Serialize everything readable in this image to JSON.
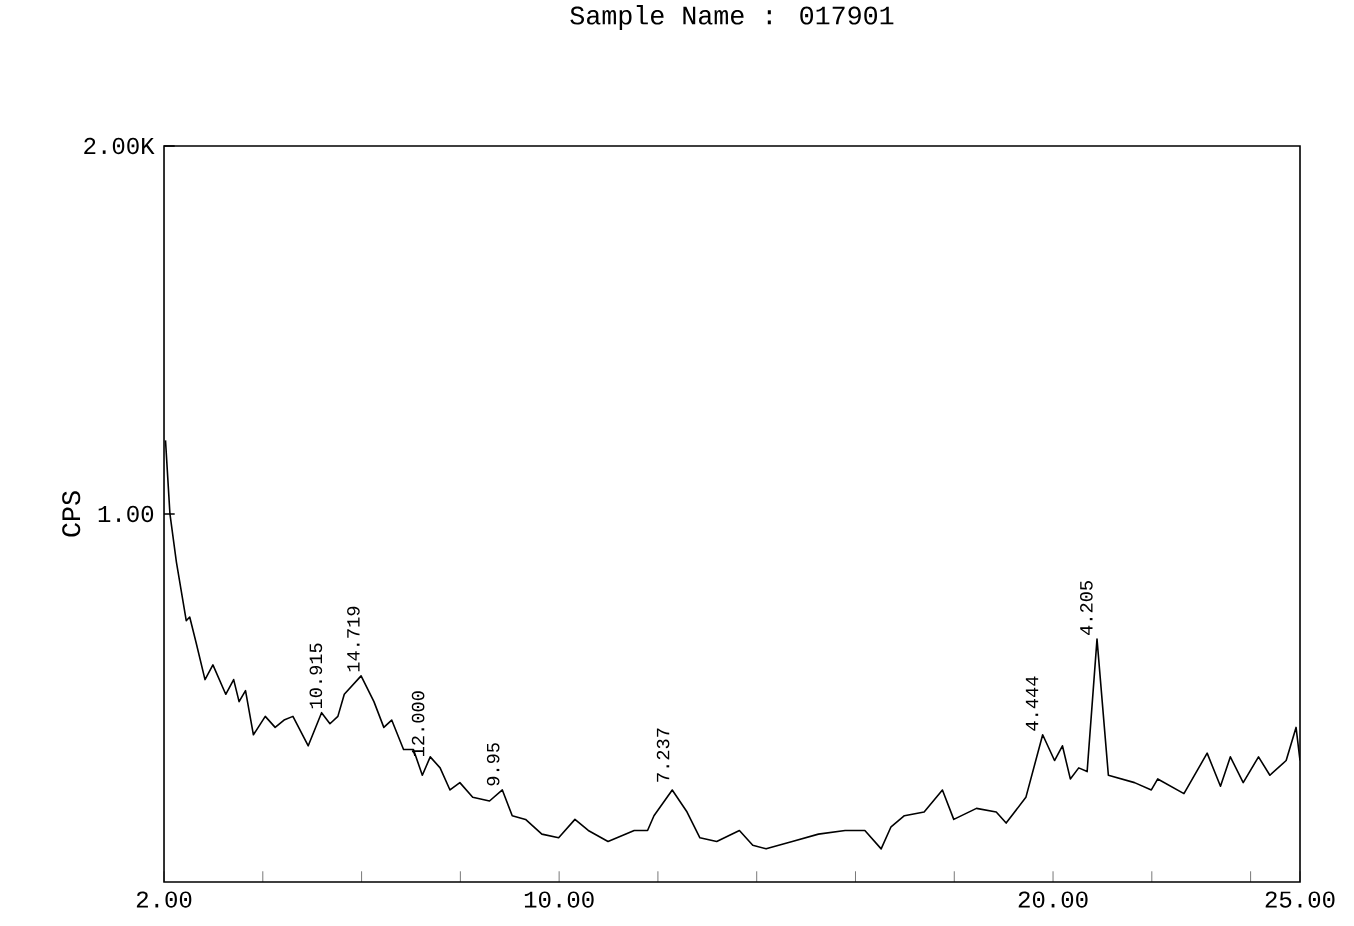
{
  "chart_data": {
    "type": "line",
    "title": "Sample Name : 017901",
    "ylabel": "CPS",
    "xlim": [
      2,
      25
    ],
    "ylim": [
      0,
      2
    ],
    "xticks": [
      {
        "value": 2,
        "label": "2.00"
      },
      {
        "value": 4,
        "label": null
      },
      {
        "value": 6,
        "label": null
      },
      {
        "value": 8,
        "label": null
      },
      {
        "value": 10,
        "label": "10.00"
      },
      {
        "value": 12,
        "label": null
      },
      {
        "value": 14,
        "label": null
      },
      {
        "value": 16,
        "label": null
      },
      {
        "value": 18,
        "label": null
      },
      {
        "value": 20,
        "label": "20.00"
      },
      {
        "value": 22,
        "label": null
      },
      {
        "value": 24,
        "label": null
      },
      {
        "value": 25,
        "label": "25.00"
      }
    ],
    "yticks": [
      {
        "value": 1,
        "label": "1.00"
      },
      {
        "value": 2,
        "label": "2.00K"
      }
    ],
    "x": [
      2.03,
      2.12,
      2.25,
      2.45,
      2.52,
      2.65,
      2.83,
      2.99,
      3.12,
      3.25,
      3.41,
      3.52,
      3.65,
      3.81,
      4.05,
      4.25,
      4.43,
      4.61,
      4.92,
      5.19,
      5.36,
      5.52,
      5.65,
      5.99,
      6.25,
      6.45,
      6.61,
      6.85,
      7.05,
      7.23,
      7.39,
      7.59,
      7.79,
      7.99,
      8.25,
      8.59,
      8.85,
      9.05,
      9.32,
      9.65,
      9.99,
      10.32,
      10.59,
      10.99,
      11.52,
      11.79,
      11.92,
      12.29,
      12.59,
      12.85,
      13.19,
      13.65,
      13.92,
      14.19,
      14.72,
      15.25,
      15.79,
      16.19,
      16.52,
      16.72,
      16.99,
      17.39,
      17.76,
      17.99,
      18.45,
      18.85,
      19.05,
      19.45,
      19.79,
      20.03,
      20.19,
      20.35,
      20.52,
      20.69,
      20.89,
      21.12,
      21.65,
      21.99,
      22.12,
      22.65,
      23.12,
      23.39,
      23.59,
      23.85,
      24.16,
      24.39,
      24.72,
      24.92,
      25.0
    ],
    "series": [
      {
        "color": "#000000",
        "values": [
          1.2,
          1.0,
          0.87,
          0.71,
          0.72,
          0.65,
          0.55,
          0.59,
          0.55,
          0.51,
          0.55,
          0.49,
          0.52,
          0.4,
          0.45,
          0.42,
          0.44,
          0.45,
          0.37,
          0.46,
          0.43,
          0.45,
          0.51,
          0.56,
          0.49,
          0.42,
          0.44,
          0.36,
          0.36,
          0.29,
          0.34,
          0.31,
          0.25,
          0.27,
          0.23,
          0.22,
          0.25,
          0.18,
          0.17,
          0.13,
          0.12,
          0.17,
          0.14,
          0.11,
          0.14,
          0.14,
          0.18,
          0.25,
          0.19,
          0.12,
          0.11,
          0.14,
          0.1,
          0.09,
          0.11,
          0.13,
          0.14,
          0.14,
          0.09,
          0.15,
          0.18,
          0.19,
          0.25,
          0.17,
          0.2,
          0.19,
          0.16,
          0.23,
          0.4,
          0.33,
          0.37,
          0.28,
          0.31,
          0.3,
          0.66,
          0.29,
          0.27,
          0.25,
          0.28,
          0.24,
          0.35,
          0.26,
          0.34,
          0.27,
          0.34,
          0.29,
          0.33,
          0.42,
          0.33
        ]
      }
    ],
    "annotations": [
      {
        "text": "10.915",
        "x": 5.29,
        "y": 0.46
      },
      {
        "text": "14.719",
        "x": 6.05,
        "y": 0.56
      },
      {
        "text": "12.000",
        "x": 7.36,
        "y": 0.33
      },
      {
        "text": "9.95",
        "x": 8.88,
        "y": 0.25
      },
      {
        "text": "7.237",
        "x": 12.32,
        "y": 0.26
      },
      {
        "text": "4.444",
        "x": 19.79,
        "y": 0.4
      },
      {
        "text": "4.205",
        "x": 20.89,
        "y": 0.66
      }
    ]
  }
}
